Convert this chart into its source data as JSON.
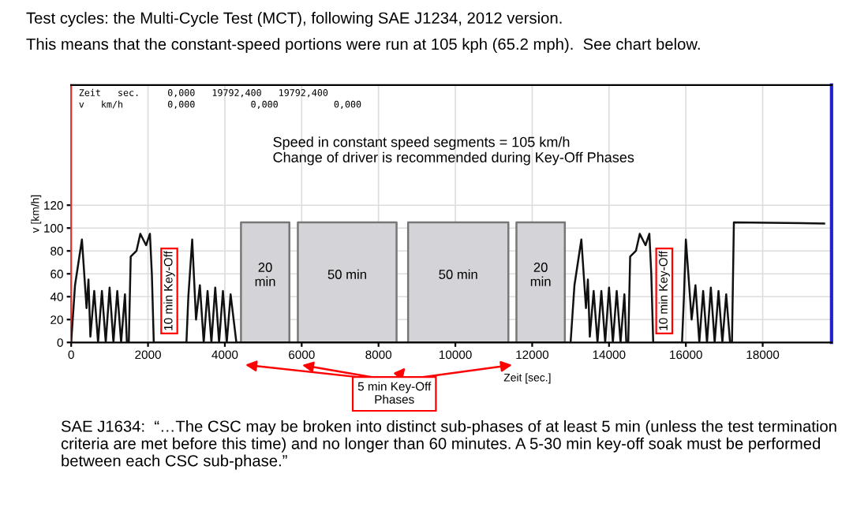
{
  "chart_data": {
    "type": "line",
    "title": "Test cycles: the Multi-Cycle Test (MCT), following SAE J1234, 2012 version.",
    "subtitle": "This means that the constant-speed portions were run at 105 kph (65.2 mph).  See chart below.",
    "xlabel": "Zeit [sec.]",
    "ylabel": "v [km/h]",
    "series": [
      {
        "type": "area",
        "color": "#d4d4d8",
        "x": [
          4420,
          4420,
          5680,
          5680,
          5900,
          5900,
          8470,
          8470,
          8770,
          8770,
          11380,
          11380,
          11590,
          11590,
          12850,
          12850
        ],
        "values": [
          0,
          105,
          105,
          0,
          0,
          105,
          105,
          0,
          0,
          105,
          105,
          0,
          0,
          105,
          105,
          0
        ]
      },
      {
        "color": "#111111",
        "x": [
          0,
          100,
          280,
          400,
          450,
          500,
          600,
          700,
          800,
          900,
          1000,
          1100,
          1200,
          1300,
          1400,
          1450,
          1500,
          1550,
          1700,
          1800,
          1950,
          2050,
          2100,
          2150,
          3000,
          3050,
          3150,
          3250,
          3350,
          3450,
          3550,
          3650,
          3750,
          3850,
          3950,
          4050,
          4150,
          4300,
          13000,
          13100,
          13280,
          13400,
          13450,
          13500,
          13600,
          13700,
          13800,
          13900,
          14000,
          14100,
          14200,
          14300,
          14400,
          14450,
          14500,
          14550,
          14700,
          14800,
          14950,
          15050,
          15100,
          15150,
          15900,
          15950,
          16000,
          16150,
          16250,
          16350,
          16450,
          16550,
          16650,
          16750,
          16850,
          16950,
          17050,
          17150,
          17200,
          17250,
          19600
        ],
        "values": [
          0,
          50,
          90,
          30,
          55,
          5,
          45,
          0,
          45,
          0,
          48,
          0,
          45,
          0,
          42,
          0,
          0,
          75,
          80,
          95,
          85,
          95,
          60,
          0,
          0,
          40,
          90,
          20,
          50,
          0,
          45,
          0,
          48,
          0,
          45,
          0,
          42,
          0,
          0,
          50,
          90,
          30,
          55,
          5,
          45,
          0,
          45,
          0,
          48,
          0,
          45,
          0,
          42,
          0,
          0,
          75,
          80,
          95,
          85,
          95,
          60,
          0,
          0,
          40,
          90,
          20,
          50,
          0,
          45,
          0,
          48,
          0,
          45,
          0,
          42,
          0,
          0,
          105,
          104
        ]
      }
    ],
    "xlim": [
      0,
      19792
    ],
    "ylim": [
      0,
      225
    ],
    "xticks": [
      0,
      2000,
      4000,
      6000,
      8000,
      10000,
      12000,
      14000,
      16000,
      18000
    ],
    "yticks": [
      0,
      20,
      40,
      60,
      80,
      100,
      120
    ],
    "grid": true,
    "annotations": [
      "Zeit   sec.     0,000   19792,400   19792,400",
      "v   km/h        0,000          0,000          0,000",
      "Speed in constant speed segments = 105 km/h\nChange of driver is recommended during Key-Off Phases",
      "10 min Key-Off",
      "20\nmin",
      "50 min",
      "50 min",
      "20\nmin",
      "10 min Key-Off",
      "5 min Key-Off\nPhases",
      "SAE J1634:  “…The CSC may be broken into distinct sub-phases of at least 5 min (unless the test termination criteria are met before this time) and no longer than 60 minutes. A 5-30 min key-off soak must be performed between each CSC sub-phase.”"
    ]
  }
}
